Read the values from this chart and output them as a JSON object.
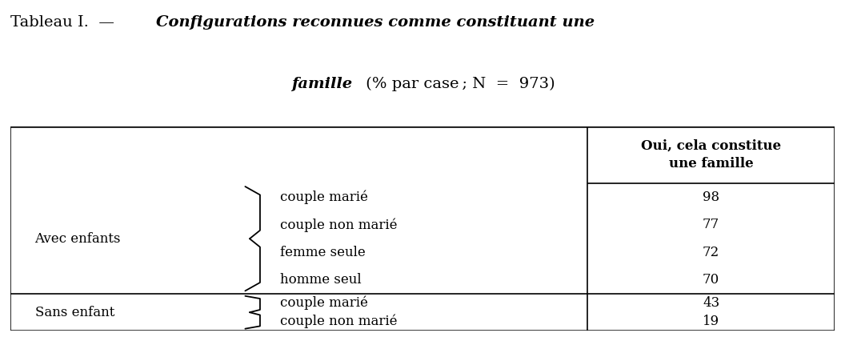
{
  "title_prefix": "Tableau I.  —  ",
  "title_bold_italic_1": "Configurations reconnues comme constituant une",
  "title_bold_italic_2": "famille",
  "title_normal_2": " (% par case ; N  =  973)",
  "col_header_line1": "Oui, cela constitue",
  "col_header_line2": "une famille",
  "group1_label": "Avec enfants",
  "group2_label": "Sans enfant",
  "group1_rows": [
    "couple marié",
    "couple non marié",
    "femme seule",
    "homme seul"
  ],
  "group2_rows": [
    "couple marié",
    "couple non marié"
  ],
  "group1_values": [
    "98",
    "77",
    "72",
    "70"
  ],
  "group2_values": [
    "43",
    "19"
  ],
  "bg_color": "#ffffff",
  "text_color": "#000000",
  "line_color": "#000000",
  "title_fontsize": 14,
  "body_fontsize": 12,
  "header_fontsize": 12
}
